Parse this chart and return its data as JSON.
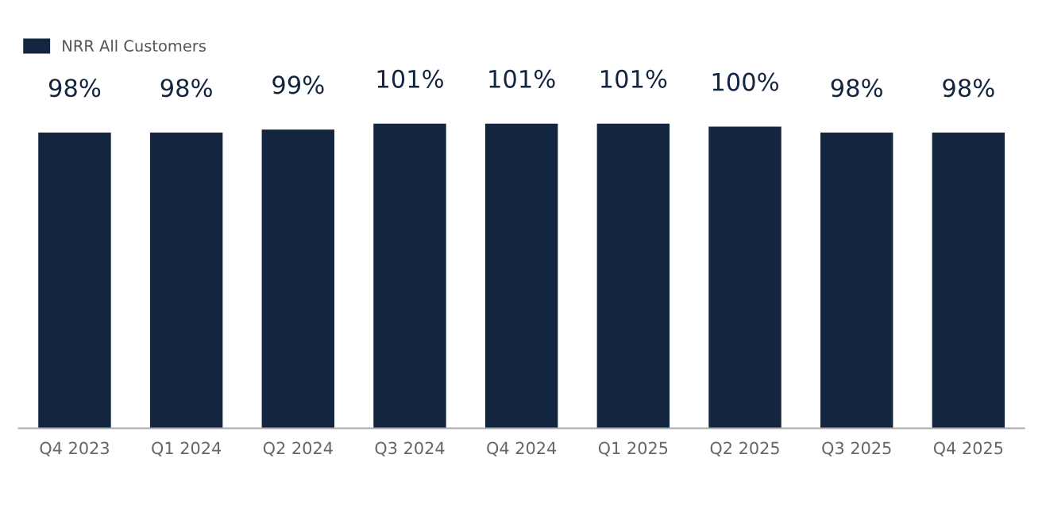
{
  "chart_data": {
    "type": "bar",
    "categories": [
      "Q4 2023",
      "Q1 2024",
      "Q2 2024",
      "Q3 2024",
      "Q4 2024",
      "Q1 2025",
      "Q2 2025",
      "Q3 2025",
      "Q4 2025"
    ],
    "series": [
      {
        "name": "NRR All Customers",
        "color": "#13253f",
        "values": [
          98,
          98,
          99,
          101,
          101,
          101,
          100,
          98,
          98
        ],
        "value_labels": [
          "98%",
          "98%",
          "99%",
          "101%",
          "101%",
          "101%",
          "100%",
          "98%",
          "98%"
        ]
      }
    ],
    "legend": "top left",
    "grid": false,
    "tick_labels": "x"
  }
}
